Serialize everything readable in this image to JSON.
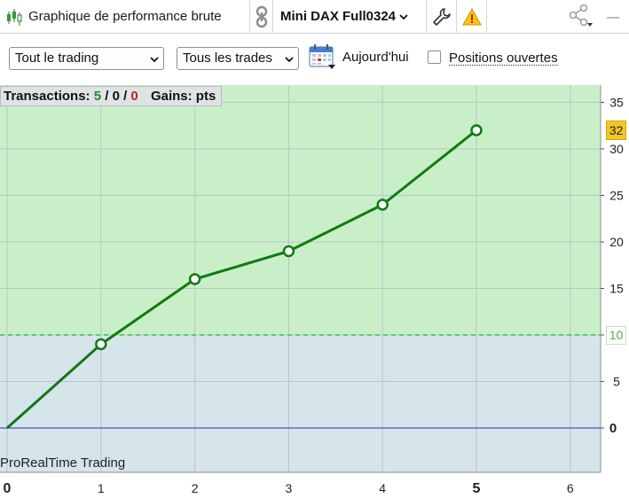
{
  "titlebar": {
    "title": "Graphique de performance brute",
    "instrument": "Mini DAX Full0324",
    "title_icon": "candlestick-icon",
    "link_icon": "link-icon",
    "wrench_icon": "wrench-icon",
    "warning_icon": "warning-icon",
    "share_icon": "share-icon",
    "minimize_icon": "minimize-icon"
  },
  "toolbar": {
    "scope_select": "Tout le trading",
    "trades_select": "Tous les trades",
    "calendar_icon": "calendar-icon",
    "today_label": "Aujourd'hui",
    "open_positions_label": "Positions ouvertes",
    "open_positions_checked": false
  },
  "stats": {
    "label": "Transactions:",
    "wins": "5",
    "sep1": "/",
    "neutral": "0",
    "sep2": "/",
    "losses": "0",
    "gains_label": "Gains: pts"
  },
  "watermark": "ProRealTime Trading",
  "badges": {
    "last_value": "32",
    "threshold_value": "10"
  },
  "colors": {
    "line": "#0f7a0f",
    "upper_zone": "#c9efc9",
    "lower_zone": "#d6e4ec",
    "threshold_line": "#3cc43c",
    "zero_line": "#2a2aa8",
    "last_value_badge": "#f4c52a"
  },
  "chart_data": {
    "type": "line",
    "x": [
      0,
      1,
      2,
      3,
      4,
      5
    ],
    "series": [
      {
        "values": [
          0,
          9,
          16,
          19,
          24,
          32
        ]
      }
    ],
    "xlim": [
      0,
      6.3
    ],
    "ylim": [
      -5,
      37
    ],
    "x_ticks": [
      "0",
      "1",
      "2",
      "3",
      "4",
      "5",
      "6"
    ],
    "y_ticks": [
      "0",
      "5",
      "10",
      "15",
      "20",
      "25",
      "30",
      "35"
    ],
    "bold_x_ticks": [
      "0",
      "5"
    ],
    "threshold": 10,
    "zero_line": 0,
    "grid": true
  }
}
